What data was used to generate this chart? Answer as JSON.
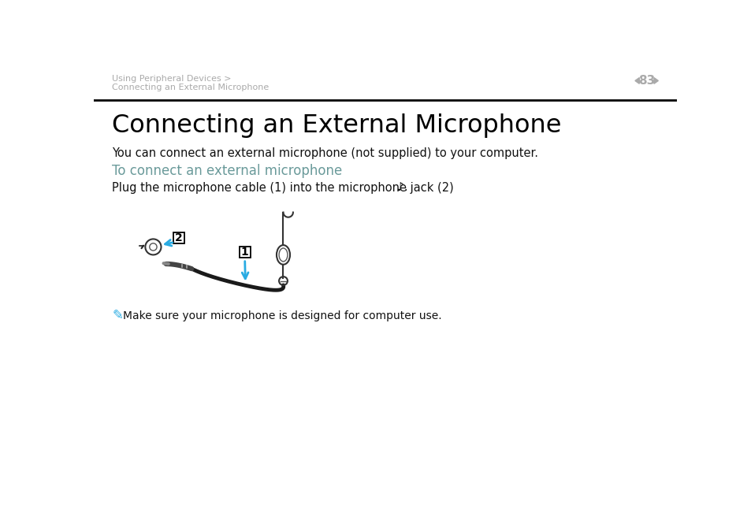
{
  "title": "Connecting an External Microphone",
  "breadcrumb_line1": "Using Peripheral Devices >",
  "breadcrumb_line2": "Connecting an External Microphone",
  "page_number": "83",
  "body_text": "You can connect an external microphone (not supplied) to your computer.",
  "subtitle": "To connect an external microphone",
  "instruction": "Plug the microphone cable (1) into the microphone jack (2)",
  "note_text": "Make sure your microphone is designed for computer use.",
  "bg_color": "#ffffff",
  "breadcrumb_color": "#aaaaaa",
  "title_color": "#000000",
  "subtitle_color": "#6a9a9a",
  "body_color": "#111111",
  "note_color": "#111111",
  "arrow_color": "#29abe2",
  "line_color": "#333333",
  "header_line_color": "#000000"
}
